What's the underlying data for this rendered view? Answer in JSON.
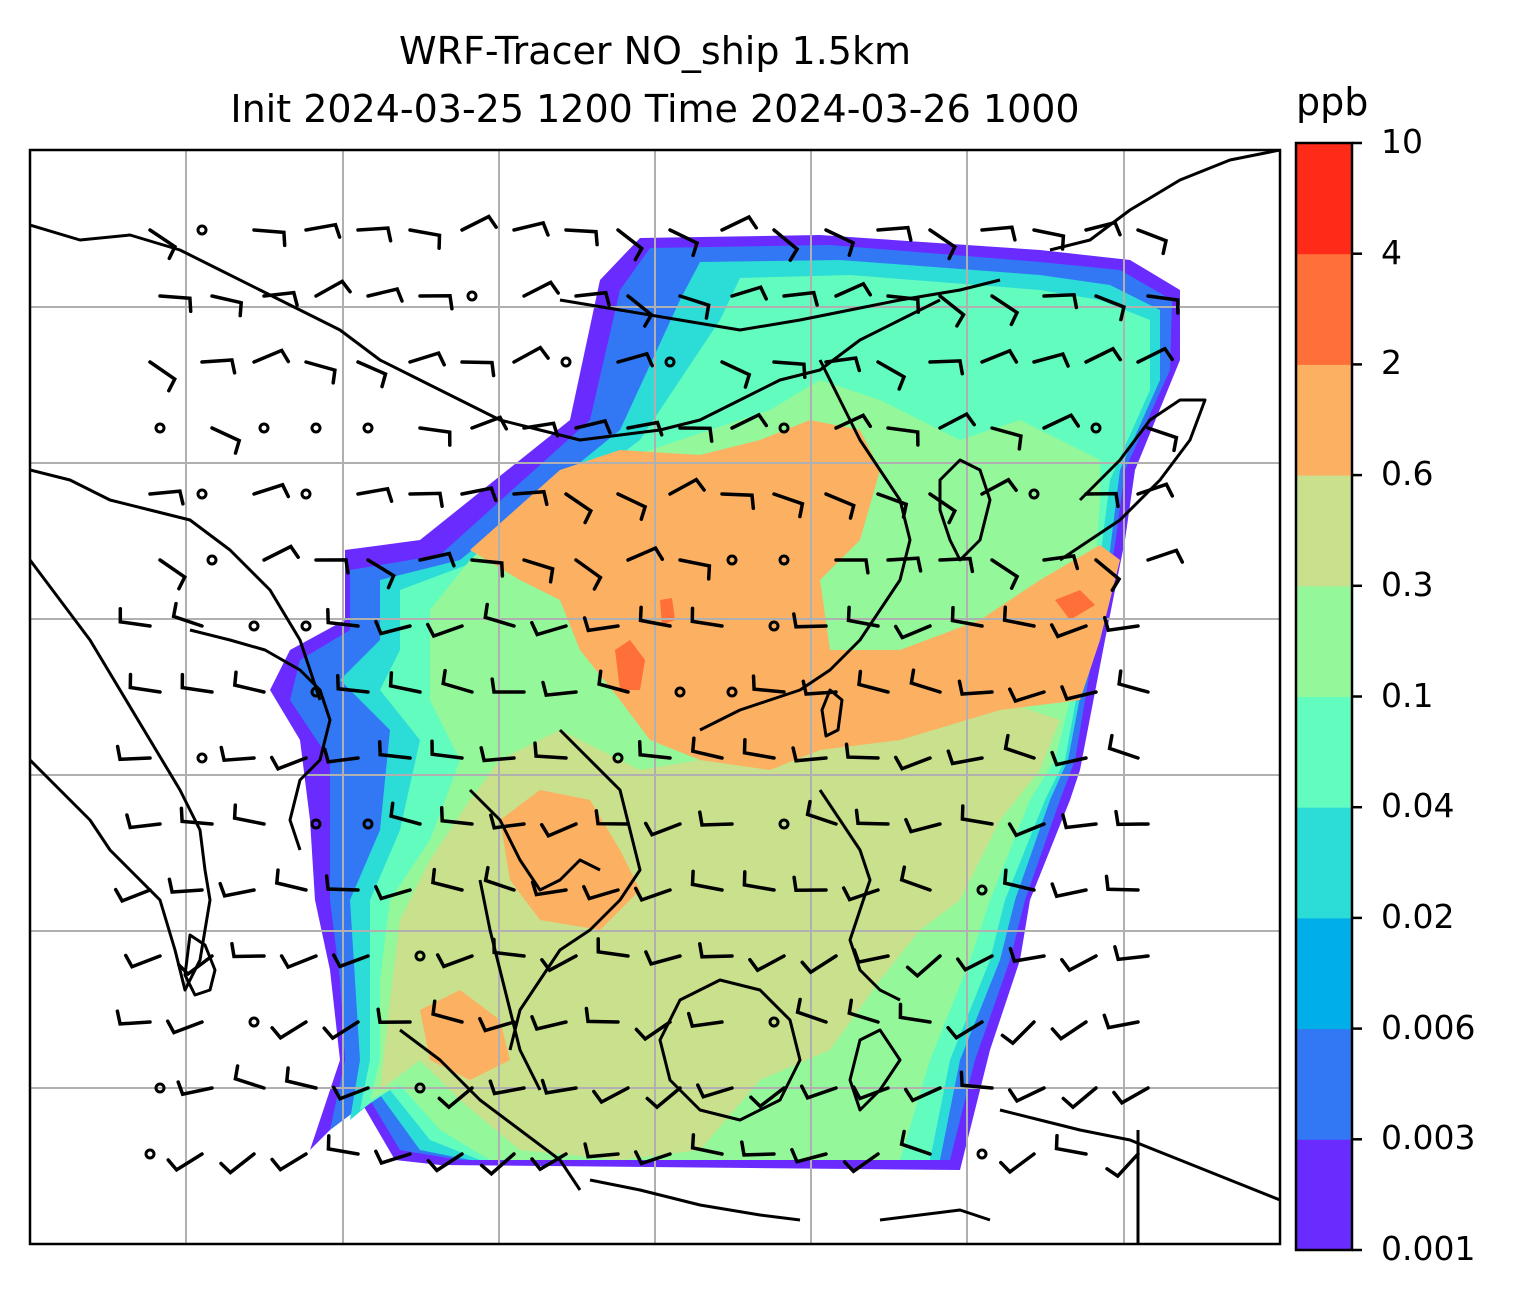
{
  "title": {
    "line1": "WRF-Tracer NO_ship 1.5km",
    "line2": "Init 2024-03-25 1200 Time 2024-03-26 1000"
  },
  "colorbar": {
    "units": "ppb",
    "tick_labels": [
      "0.001",
      "0.003",
      "0.006",
      "0.02",
      "0.04",
      "0.1",
      "0.3",
      "0.6",
      "2",
      "4",
      "10"
    ],
    "colors": [
      "#6a2bff",
      "#3278f5",
      "#00aee8",
      "#2cdcd6",
      "#63fcbf",
      "#94f79a",
      "#c9e08c",
      "#fcb062",
      "#ff6f3a",
      "#ff2b18"
    ]
  },
  "map": {
    "gridlines": true,
    "coastline_color": "#000000",
    "gridline_color": "#b0b0b0",
    "field_name": "NO_ship",
    "level": "1.5km",
    "colors": {
      "very_low": "#6a2bff",
      "low": "#3278f5",
      "mid_low": "#00aee8",
      "cyan": "#2cdcd6",
      "aqua": "#63fcbf",
      "green": "#94f79a",
      "olive": "#c9e08c",
      "orange": "#fcb062",
      "red_orange": "#ff6f3a"
    }
  }
}
